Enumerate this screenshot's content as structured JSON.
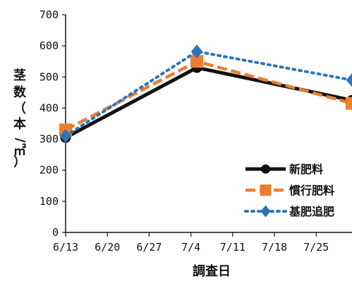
{
  "chart_data": {
    "type": "line",
    "xlabel": "調査日",
    "ylabel_chars": [
      "茎",
      "数",
      "（",
      "本",
      "/",
      "㎡",
      "）"
    ],
    "x_tick_labels": [
      "6/13",
      "6/20",
      "6/27",
      "7/4",
      "7/11",
      "7/18",
      "7/25"
    ],
    "x_tick_days": [
      0,
      7,
      14,
      21,
      28,
      35,
      42
    ],
    "xlim_days": [
      0,
      48
    ],
    "ylim": [
      0,
      700
    ],
    "y_ticks": [
      "0",
      "100",
      "200",
      "300",
      "400",
      "500",
      "600",
      "700"
    ],
    "y_tick_values": [
      0,
      100,
      200,
      300,
      400,
      500,
      600,
      700
    ],
    "grid": false,
    "legend_position": "lower-right",
    "series": [
      {
        "name": "新肥料",
        "color": "#111111",
        "line_style": "solid",
        "marker": "circle",
        "x_days": [
          0,
          22,
          48
        ],
        "values": [
          305,
          530,
          425
        ]
      },
      {
        "name": "慣行肥料",
        "color": "#ED7D31",
        "line_style": "dashed",
        "marker": "square",
        "x_days": [
          0,
          22,
          48
        ],
        "values": [
          330,
          550,
          415
        ]
      },
      {
        "name": "基肥追肥",
        "color": "#2E75B6",
        "line_style": "dotted",
        "marker": "diamond",
        "x_days": [
          0,
          22,
          48
        ],
        "values": [
          310,
          582,
          490
        ]
      }
    ]
  }
}
